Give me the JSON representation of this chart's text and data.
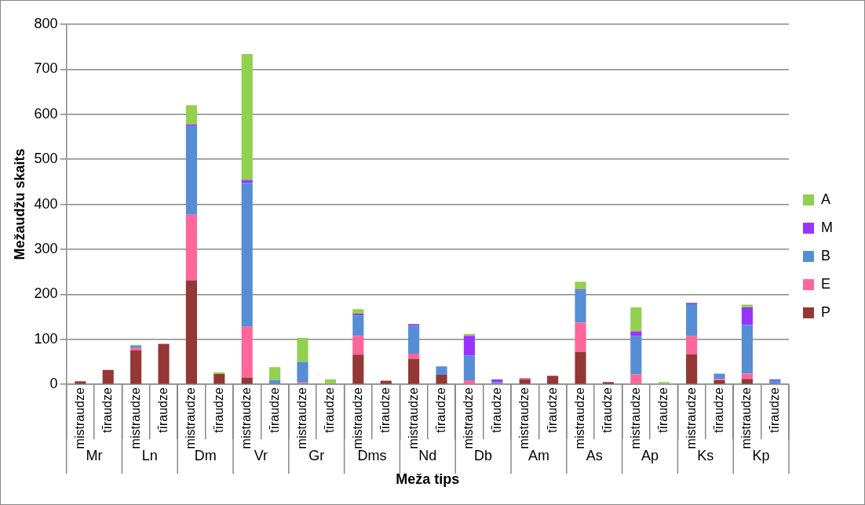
{
  "chart_data": {
    "type": "bar",
    "stacked": true,
    "xlabel": "Meža tips",
    "ylabel": "Mežaudžu skaits",
    "categories": [
      "mistraudze",
      "tīraudze",
      "mistraudze",
      "tīraudze",
      "mistraudze",
      "tīraudze",
      "mistraudze",
      "tīraudze",
      "mistraudze",
      "tīraudze",
      "mistraudze",
      "tīraudze",
      "mistraudze",
      "tīraudze",
      "mistraudze",
      "tīraudze",
      "mistraudze",
      "tīraudze",
      "mistraudze",
      "tīraudze",
      "mistraudze",
      "tīraudze",
      "mistraudze",
      "tīraudze",
      "mistraudze",
      "tīraudze"
    ],
    "annotations": [
      "Mr",
      "Ln",
      "Dm",
      "Vr",
      "Gr",
      "Dms",
      "Nd",
      "Db",
      "Am",
      "As",
      "Ap",
      "Ks",
      "Kp"
    ],
    "series": [
      {
        "name": "P",
        "color": "#953735",
        "values": [
          7,
          32,
          75,
          90,
          231,
          23,
          15,
          0,
          0,
          0,
          66,
          8,
          57,
          21,
          0,
          0,
          11,
          19,
          72,
          5,
          0,
          0,
          67,
          9,
          12,
          0
        ]
      },
      {
        "name": "E",
        "color": "#ff6699",
        "values": [
          0,
          0,
          6,
          0,
          146,
          0,
          113,
          0,
          4,
          0,
          42,
          null,
          11,
          0,
          9,
          0,
          3,
          0,
          65,
          0,
          22,
          0,
          41,
          3,
          12,
          0
        ]
      },
      {
        "name": "B",
        "color": "#558ed5",
        "values": [
          0,
          0,
          5,
          0,
          197,
          0,
          319,
          10,
          46,
          0,
          45,
          0,
          62,
          19,
          55,
          5,
          0,
          0,
          72,
          0,
          85,
          0,
          70,
          12,
          108,
          9
        ]
      },
      {
        "name": "M",
        "color": "#9933ff",
        "values": [
          0,
          0,
          0,
          0,
          4,
          0,
          7,
          0,
          0,
          0,
          4,
          0,
          4,
          0,
          44,
          6,
          0,
          0,
          2,
          0,
          11,
          0,
          3,
          0,
          39,
          2
        ]
      },
      {
        "name": "A",
        "color": "#92d050",
        "values": [
          0,
          0,
          2,
          0,
          42,
          4,
          280,
          28,
          53,
          11,
          10,
          0,
          0,
          0,
          4,
          0,
          0,
          0,
          17,
          0,
          53,
          5,
          0,
          0,
          6,
          0
        ]
      }
    ],
    "ylim": [
      0,
      800
    ],
    "yticks": [
      0,
      100,
      200,
      300,
      400,
      500,
      600,
      700,
      800
    ],
    "grid": "y",
    "legend": "right"
  }
}
